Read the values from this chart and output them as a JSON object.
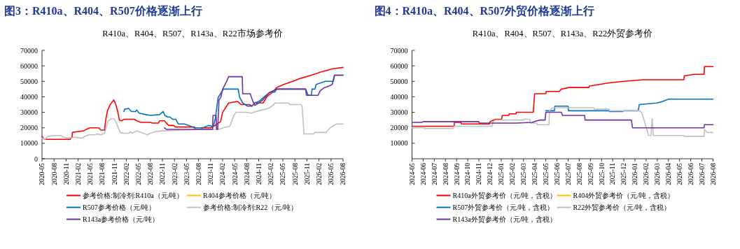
{
  "chart_data": [
    {
      "type": "line",
      "title": "图3：R410a、R404、R507价格逐渐上行",
      "subtitle": "R410a、R404、R507、R143a、R22市场参考价",
      "xlim": [
        "2020-05",
        "2026-08"
      ],
      "ylim": [
        0,
        70000
      ],
      "yticks": [
        0,
        10000,
        20000,
        30000,
        40000,
        50000,
        60000,
        70000
      ],
      "xticks": [
        "2020-05",
        "2020-08",
        "2020-11",
        "2021-02",
        "2021-05",
        "2021-08",
        "2021-11",
        "2022-02",
        "2022-05",
        "2022-08",
        "2022-11",
        "2023-02",
        "2023-05",
        "2023-08",
        "2023-11",
        "2024-02",
        "2024-05",
        "2024-08",
        "2024-11",
        "2025-02",
        "2025-05",
        "2025-08",
        "2025-11",
        "2026-02",
        "2026-05",
        "2026-08"
      ],
      "legend": "bottom",
      "series": [
        {
          "name": "参考价格:制冷剂:R410a（元/吨）",
          "color": "#ff0000",
          "x": [
            "2020-05-01",
            "2020-05-19",
            "2020-12-01",
            "2020-12-16",
            "2020-12-19",
            "2021-01-22",
            "2021-03-13",
            "2021-04-01",
            "2021-04-28",
            "2021-07-04",
            "2021-07-22",
            "2021-08-19",
            "2021-08-28",
            "2021-09-10",
            "2021-10-01",
            "2021-10-28",
            "2021-11-13",
            "2021-11-28",
            "2021-12-10",
            "2021-12-28",
            "2022-01-13",
            "2022-04-01",
            "2022-04-19",
            "2022-05-22",
            "2022-08-01",
            "2022-08-16",
            "2022-10-01",
            "2022-10-10",
            "2022-11-16",
            "2022-12-01",
            "2022-12-19",
            "2023-01-25",
            "2023-02-07",
            "2023-07-01",
            "2023-07-07",
            "2023-08-19",
            "2023-09-01",
            "2023-11-01",
            "2023-11-25",
            "2024-01-16",
            "2024-02-01",
            "2024-03-16",
            "2024-05-25",
            "2024-06-19",
            "2024-08-22",
            "2024-09-10",
            "2024-10-01",
            "2024-12-04",
            "2025-01-01",
            "2025-02-13",
            "2025-03-16",
            "2025-05-07",
            "2025-07-16",
            "2025-09-16",
            "2025-12-04",
            "2026-02-13",
            "2026-05-10",
            "2026-08-01"
          ],
          "values": [
            14500,
            12500,
            12500,
            14000,
            17000,
            17500,
            18000,
            19000,
            20000,
            20000,
            18500,
            18500,
            25000,
            31000,
            35000,
            38000,
            35000,
            30000,
            25000,
            24500,
            25500,
            25500,
            24500,
            23500,
            23500,
            23000,
            23000,
            24500,
            24500,
            23000,
            21500,
            21500,
            20500,
            20500,
            19000,
            19000,
            20000,
            20000,
            21000,
            24000,
            30000,
            36000,
            37000,
            35000,
            35000,
            34000,
            36000,
            36000,
            40000,
            43000,
            46000,
            48000,
            50000,
            52000,
            54000,
            56000,
            58000,
            59000
          ]
        },
        {
          "name": "R404参考价格（元/吨）",
          "color": "#ffc000"
        },
        {
          "name": "R507参考价格（元/吨）",
          "color": "#0070c0",
          "x": [
            "2022-01-13",
            "2022-01-19",
            "2022-02-16",
            "2022-03-10",
            "2022-04-10",
            "2022-04-19",
            "2022-05-07",
            "2022-06-28",
            "2022-08-01",
            "2022-10-10",
            "2022-11-07",
            "2022-11-19",
            "2022-12-10",
            "2022-12-28",
            "2023-01-16",
            "2023-02-10",
            "2023-02-28",
            "2023-04-16",
            "2023-05-01",
            "2023-06-01",
            "2023-07-01",
            "2023-09-01",
            "2023-10-16",
            "2023-11-16",
            "2023-11-25",
            "2023-12-07",
            "2023-12-28",
            "2024-01-16",
            "2024-02-07",
            "2024-05-28",
            "2024-06-07",
            "2024-07-01",
            "2024-08-07",
            "2024-09-10",
            "2024-10-01",
            "2024-11-01",
            "2024-12-13",
            "2025-01-25",
            "2025-02-28",
            "2025-03-16",
            "2025-10-22",
            "2025-11-10",
            "2025-12-04",
            "2025-12-10",
            "2026-01-01",
            "2026-01-10",
            "2026-03-19",
            "2026-05-19",
            "2026-05-28",
            "2026-08-01"
          ],
          "values": [
            30500,
            32000,
            32500,
            30500,
            30500,
            31500,
            29500,
            28500,
            28000,
            28500,
            30500,
            28000,
            27000,
            27000,
            25500,
            25500,
            22500,
            22500,
            22000,
            21000,
            20000,
            20000,
            21500,
            21000,
            22000,
            26000,
            39500,
            42000,
            45000,
            45000,
            40000,
            36000,
            34000,
            34000,
            36000,
            37000,
            40000,
            43000,
            43000,
            45000,
            45000,
            41000,
            41000,
            45000,
            45000,
            48000,
            50000,
            50000,
            54000,
            54000
          ]
        },
        {
          "name": "参考价格:制冷剂:R22（元/吨）",
          "color": "#bfbfbf",
          "x": [
            "2020-05-01",
            "2020-05-22",
            "2020-06-16",
            "2020-08-01",
            "2020-09-22",
            "2020-10-10",
            "2020-10-28",
            "2020-12-19",
            "2021-01-04",
            "2021-02-10",
            "2021-03-04",
            "2021-03-22",
            "2021-04-19",
            "2021-06-10",
            "2021-06-19",
            "2021-07-22",
            "2021-08-19",
            "2021-09-13",
            "2021-10-10",
            "2021-10-28",
            "2021-11-13",
            "2021-12-01",
            "2021-12-16",
            "2022-01-13",
            "2022-02-19",
            "2022-02-28",
            "2022-03-13",
            "2022-04-19",
            "2022-05-22",
            "2022-07-07",
            "2022-08-01",
            "2022-09-07",
            "2022-11-01",
            "2023-04-01",
            "2023-09-01",
            "2024-01-01",
            "2024-02-04",
            "2024-03-25",
            "2024-04-04",
            "2024-04-25",
            "2024-05-10",
            "2024-08-01",
            "2024-09-04",
            "2024-11-01",
            "2024-12-22",
            "2025-01-25",
            "2025-02-22",
            "2025-03-01",
            "2025-06-13",
            "2025-06-22",
            "2025-09-16",
            "2025-09-25",
            "2025-10-10",
            "2025-12-22",
            "2026-01-01",
            "2026-03-25",
            "2026-04-13",
            "2026-05-10",
            "2026-06-16",
            "2026-08-01"
          ],
          "values": [
            13500,
            12500,
            14500,
            15000,
            15000,
            14000,
            13500,
            13500,
            14000,
            13500,
            13500,
            14500,
            15500,
            15500,
            16000,
            15500,
            16500,
            24000,
            26000,
            26000,
            24000,
            20000,
            17000,
            16500,
            16500,
            17500,
            16500,
            18000,
            17000,
            15500,
            16500,
            17500,
            18000,
            18500,
            19000,
            19000,
            20000,
            21000,
            23000,
            28000,
            30000,
            30000,
            29500,
            31000,
            32000,
            33000,
            35000,
            36000,
            36000,
            35000,
            35000,
            34000,
            16000,
            16000,
            17000,
            17000,
            19000,
            21000,
            22500,
            22500
          ]
        },
        {
          "name": "R143a参考价格（元/吨）",
          "color": "#7030a0",
          "x": [
            "2022-11-16",
            "2022-12-01",
            "2023-11-16",
            "2023-11-19",
            "2023-12-13",
            "2023-12-16",
            "2023-12-25",
            "2024-01-04",
            "2024-01-19",
            "2024-02-01",
            "2024-02-19",
            "2024-03-01",
            "2024-03-16",
            "2024-06-28",
            "2024-07-01",
            "2024-08-28",
            "2024-09-13",
            "2024-10-01",
            "2024-11-01",
            "2024-12-01",
            "2025-01-01",
            "2025-01-25",
            "2025-02-22",
            "2025-03-16",
            "2025-10-22",
            "2025-10-28",
            "2026-01-25",
            "2026-02-10",
            "2026-03-13",
            "2026-04-16",
            "2026-05-10",
            "2026-05-28",
            "2026-08-01"
          ],
          "values": [
            20000,
            19000,
            19000,
            28000,
            28000,
            19000,
            19000,
            38000,
            40000,
            45000,
            48000,
            50000,
            53000,
            53000,
            42000,
            42000,
            38000,
            34500,
            36000,
            38000,
            41000,
            43000,
            44000,
            45000,
            45000,
            41000,
            41000,
            44000,
            46000,
            47000,
            48000,
            54000,
            54000
          ]
        }
      ]
    },
    {
      "type": "line",
      "title": "图4：R410a、R404、R507外贸价格逐渐上行",
      "subtitle": "R410a、R404、R507、R143a、R22外贸参考价",
      "xlim": [
        "2024-05",
        "2026-08"
      ],
      "ylim": [
        0,
        70000
      ],
      "yticks": [
        10000,
        20000,
        30000,
        40000,
        50000,
        60000,
        70000
      ],
      "xticks": [
        "2024-05",
        "2024-06",
        "2024-07",
        "2024-08",
        "2024-09",
        "2024-10",
        "2024-11",
        "2024-12",
        "2025-01",
        "2025-02",
        "2025-03",
        "2025-04",
        "2025-05",
        "2025-06",
        "2025-07",
        "2025-08",
        "2025-09",
        "2025-10",
        "2025-11",
        "2025-12",
        "2026-01",
        "2026-02",
        "2026-03",
        "2026-04",
        "2026-05",
        "2026-06",
        "2026-07",
        "2026-08"
      ],
      "legend": "bottom",
      "series": [
        {
          "name": "R410a外贸参考价（元/吨，含税）",
          "color": "#ff0000",
          "x": [
            "2024-05-01",
            "2024-08-25",
            "2024-08-26",
            "2024-09-13",
            "2024-09-14",
            "2024-11-29",
            "2024-12-01",
            "2024-12-16",
            "2025-01-02",
            "2025-01-04",
            "2025-01-22",
            "2025-01-23",
            "2025-02-10",
            "2025-02-11",
            "2025-03-28",
            "2025-04-01",
            "2025-05-01",
            "2025-05-02",
            "2025-06-07",
            "2025-06-13",
            "2025-07-04",
            "2025-08-28",
            "2025-08-29",
            "2025-09-25",
            "2025-10-22",
            "2025-12-01",
            "2026-01-25",
            "2026-05-13",
            "2026-05-14",
            "2026-06-10",
            "2026-07-07",
            "2026-07-08",
            "2026-08-01"
          ],
          "values": [
            21000,
            21000,
            23500,
            23500,
            22500,
            22500,
            24000,
            25500,
            25500,
            28000,
            28000,
            29000,
            29000,
            30000,
            30000,
            42000,
            42000,
            43500,
            43500,
            45000,
            46000,
            46000,
            47000,
            48000,
            49000,
            50000,
            51000,
            51000,
            53500,
            54500,
            54500,
            59500,
            59500
          ]
        },
        {
          "name": "R404外贸参考价（元/吨，含税）",
          "color": "#ffc000"
        },
        {
          "name": "R507外贸参考价（元/吨，含税）",
          "color": "#0070c0",
          "x": [
            "2025-05-01",
            "2025-05-25",
            "2025-05-26",
            "2025-07-01",
            "2025-07-02",
            "2025-10-22",
            "2025-10-23",
            "2025-11-28",
            "2025-12-01",
            "2026-01-10",
            "2026-01-13",
            "2026-02-28",
            "2026-03-16",
            "2026-04-01",
            "2026-08-01"
          ],
          "values": [
            31000,
            31000,
            34000,
            34000,
            31000,
            31000,
            30500,
            30500,
            31000,
            31000,
            35000,
            36000,
            37000,
            38500,
            38500
          ]
        },
        {
          "name": "R22外贸参考价（元/吨，含税）",
          "color": "#bfbfbf",
          "x": [
            "2024-05-01",
            "2024-06-04",
            "2024-06-05",
            "2024-08-22",
            "2024-08-25",
            "2024-12-07",
            "2024-12-10",
            "2024-12-16",
            "2025-03-01",
            "2025-03-02",
            "2025-03-19",
            "2025-03-20",
            "2025-04-07",
            "2025-04-08",
            "2025-05-10",
            "2025-05-11",
            "2025-05-19",
            "2025-09-10",
            "2025-09-11",
            "2025-10-22",
            "2025-10-23",
            "2026-01-13",
            "2026-01-19",
            "2026-01-25",
            "2026-02-07",
            "2026-02-13",
            "2026-02-16",
            "2026-02-19",
            "2026-05-13",
            "2026-05-14",
            "2026-07-07",
            "2026-07-08",
            "2026-07-16",
            "2026-08-01"
          ],
          "values": [
            20000,
            20000,
            19500,
            19500,
            21000,
            21000,
            24000,
            25000,
            25000,
            25500,
            25500,
            23000,
            23000,
            22000,
            22000,
            31000,
            33000,
            33000,
            32000,
            32000,
            31000,
            31000,
            30000,
            26000,
            15000,
            15000,
            26000,
            15000,
            15000,
            14500,
            14500,
            19000,
            17000,
            17000
          ]
        },
        {
          "name": "R143a外贸参考价（元/吨，含税）",
          "color": "#7030a0",
          "x": [
            "2024-05-01",
            "2024-05-28",
            "2024-06-01",
            "2024-11-01",
            "2024-11-02",
            "2025-02-10",
            "2025-03-25",
            "2025-04-07",
            "2025-04-16",
            "2025-04-29",
            "2025-05-01",
            "2025-06-13",
            "2025-06-16",
            "2025-08-16",
            "2025-08-17",
            "2025-12-22",
            "2025-12-25",
            "2026-07-07",
            "2026-07-08",
            "2026-08-01"
          ],
          "values": [
            23500,
            23500,
            24000,
            24000,
            23000,
            23000,
            23500,
            24500,
            25000,
            25000,
            30000,
            30000,
            28000,
            28000,
            25000,
            25000,
            20000,
            20000,
            22000,
            22000
          ]
        }
      ]
    }
  ]
}
